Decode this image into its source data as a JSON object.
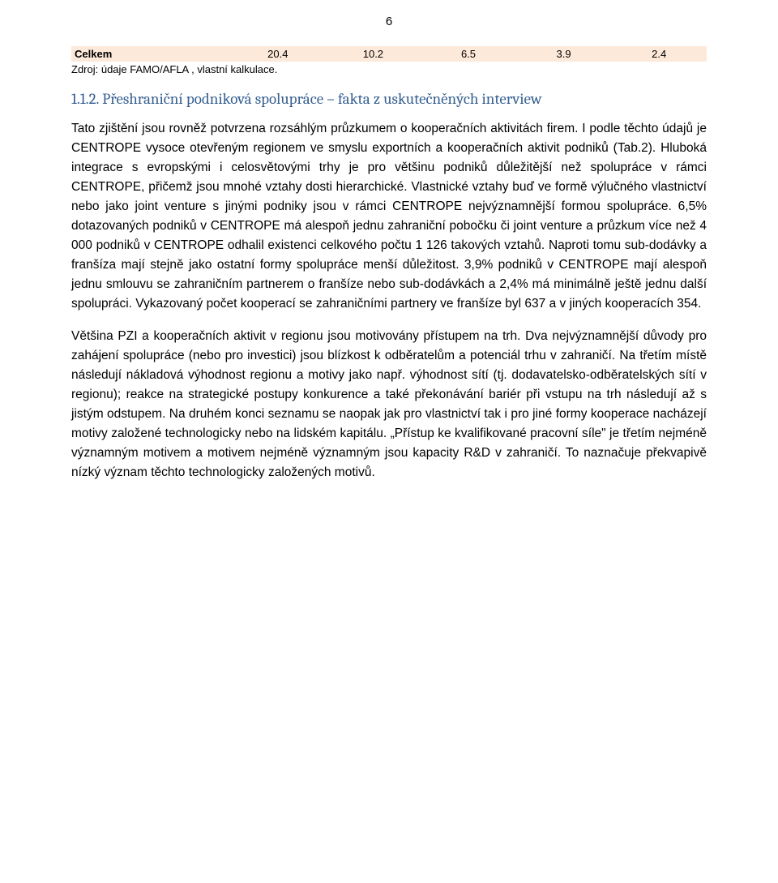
{
  "page_number": "6",
  "table": {
    "row": {
      "label": "Celkem",
      "v1": "20.4",
      "v2": "10.2",
      "v3": "6.5",
      "v4": "3.9",
      "v5": "2.4"
    },
    "row_bg": "#fde9d9",
    "source": "Zdroj: údaje FAMO/AFLA , vlastní kalkulace."
  },
  "heading": "1.1.2. Přeshraniční podniková spolupráce – fakta z uskutečněných interview",
  "heading_color": "#365f91",
  "para1": "Tato zjištění jsou rovněž potvrzena rozsáhlým průzkumem o kooperačních aktivitách firem. I podle těchto údajů je CENTROPE vysoce otevřeným regionem ve smyslu exportních a kooperačních aktivit podniků (Tab.2). Hluboká integrace s evropskými i celosvětovými trhy je pro většinu podniků důležitější než spolupráce v rámci CENTROPE, přičemž jsou mnohé vztahy dosti hierarchické. Vlastnické vztahy buď ve formě výlučného vlastnictví nebo jako joint venture s jinými podniky jsou v rámci CENTROPE nejvýznamnější formou spolupráce. 6,5% dotazovaných podniků v CENTROPE má alespoň jednu zahraniční pobočku či joint venture a průzkum více než 4 000 podniků v CENTROPE odhalil existenci celkového počtu 1 126 takových vztahů. Naproti tomu sub-dodávky a franšíza mají stejně jako ostatní formy spolupráce menší důležitost. 3,9% podniků v CENTROPE mají alespoň jednu smlouvu se zahraničním partnerem o franšíze nebo sub-dodávkách a 2,4% má minimálně ještě jednu další spolupráci. Vykazovaný počet kooperací se zahraničními partnery ve franšíze byl 637 a v jiných kooperacích 354.",
  "para2": "Většina PZI a kooperačních aktivit v regionu jsou motivovány přístupem na trh. Dva nejvýznamnější důvody pro zahájení spolupráce (nebo pro investici) jsou blízkost k odběratelům a potenciál trhu v zahraničí. Na třetím místě následují nákladová výhodnost regionu a motivy jako např. výhodnost sítí (tj. dodavatelsko-odběratelských sítí v regionu); reakce na strategické postupy konkurence a také překonávání bariér při vstupu na trh následují až s jistým odstupem. Na druhém konci seznamu se naopak jak pro vlastnictví tak i pro jiné formy kooperace nacházejí motivy založené technologicky nebo na lidském kapitálu. „Přístup ke kvalifikované pracovní síle\" je třetím nejméně významným motivem a motivem nejméně významným jsou kapacity R&D v zahraničí. To naznačuje překvapivě nízký význam těchto technologicky založených motivů."
}
